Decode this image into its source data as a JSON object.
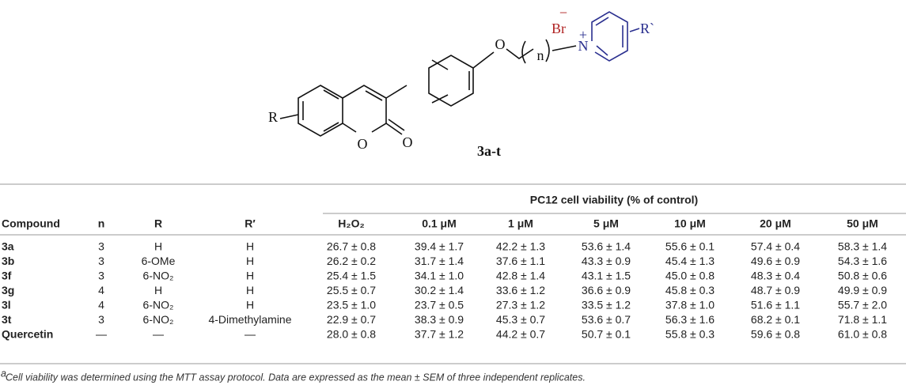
{
  "structure": {
    "R": "R",
    "ring_O": "O",
    "carbonyl_O": "O",
    "ether_O": "O",
    "Br": "Br",
    "minus": "−",
    "plus": "+",
    "N": "N",
    "n": "n",
    "R_prime": "R`",
    "label": "3a-t"
  },
  "table": {
    "group_header": "PC12 cell viability (% of control)",
    "columns": [
      "Compound",
      "n",
      "R",
      "R′",
      "H₂O₂",
      "0.1 μM",
      "1 μM",
      "5 μM",
      "10 μM",
      "20 μM",
      "50 μM"
    ],
    "rows": [
      [
        "3a",
        "3",
        "H",
        "H",
        "26.7 ± 0.8",
        "39.4 ± 1.7",
        "42.2 ± 1.3",
        "53.6 ± 1.4",
        "55.6 ± 0.1",
        "57.4 ± 0.4",
        "58.3 ± 1.4"
      ],
      [
        "3b",
        "3",
        "6-OMe",
        "H",
        "26.2 ± 0.2",
        "31.7 ± 1.4",
        "37.6 ± 1.1",
        "43.3 ± 0.9",
        "45.4 ± 1.3",
        "49.6 ± 0.9",
        "54.3 ± 1.6"
      ],
      [
        "3f",
        "3",
        "6-NO₂",
        "H",
        "25.4 ± 1.5",
        "34.1 ± 1.0",
        "42.8 ± 1.4",
        "43.1 ± 1.5",
        "45.0 ± 0.8",
        "48.3 ± 0.4",
        "50.8 ± 0.6"
      ],
      [
        "3g",
        "4",
        "H",
        "H",
        "25.5 ± 0.7",
        "30.2 ± 1.4",
        "33.6 ± 1.2",
        "36.6 ± 0.9",
        "45.8 ± 0.3",
        "48.7 ± 0.9",
        "49.9 ± 0.9"
      ],
      [
        "3l",
        "4",
        "6-NO₂",
        "H",
        "23.5 ± 1.0",
        "23.7 ± 0.5",
        "27.3 ± 1.2",
        "33.5 ± 1.2",
        "37.8 ± 1.0",
        "51.6 ± 1.1",
        "55.7 ± 2.0"
      ],
      [
        "3t",
        "3",
        "6-NO₂",
        "4-Dimethylamine",
        "22.9 ± 0.7",
        "38.3 ± 0.9",
        "45.3 ± 0.7",
        "53.6 ± 0.7",
        "56.3 ± 1.6",
        "68.2 ± 0.1",
        "71.8 ± 1.1"
      ],
      [
        "Quercetin",
        "—",
        "—",
        "—",
        "28.0 ± 0.8",
        "37.7 ± 1.2",
        "44.2 ± 0.7",
        "50.7 ± 0.1",
        "55.8 ± 0.3",
        "59.6 ± 0.8",
        "61.0 ± 0.8"
      ]
    ]
  },
  "footnote": {
    "marker": "a",
    "text": "Cell viability was determined using the MTT assay protocol. Data are expressed as the mean ± SEM of three independent replicates."
  }
}
